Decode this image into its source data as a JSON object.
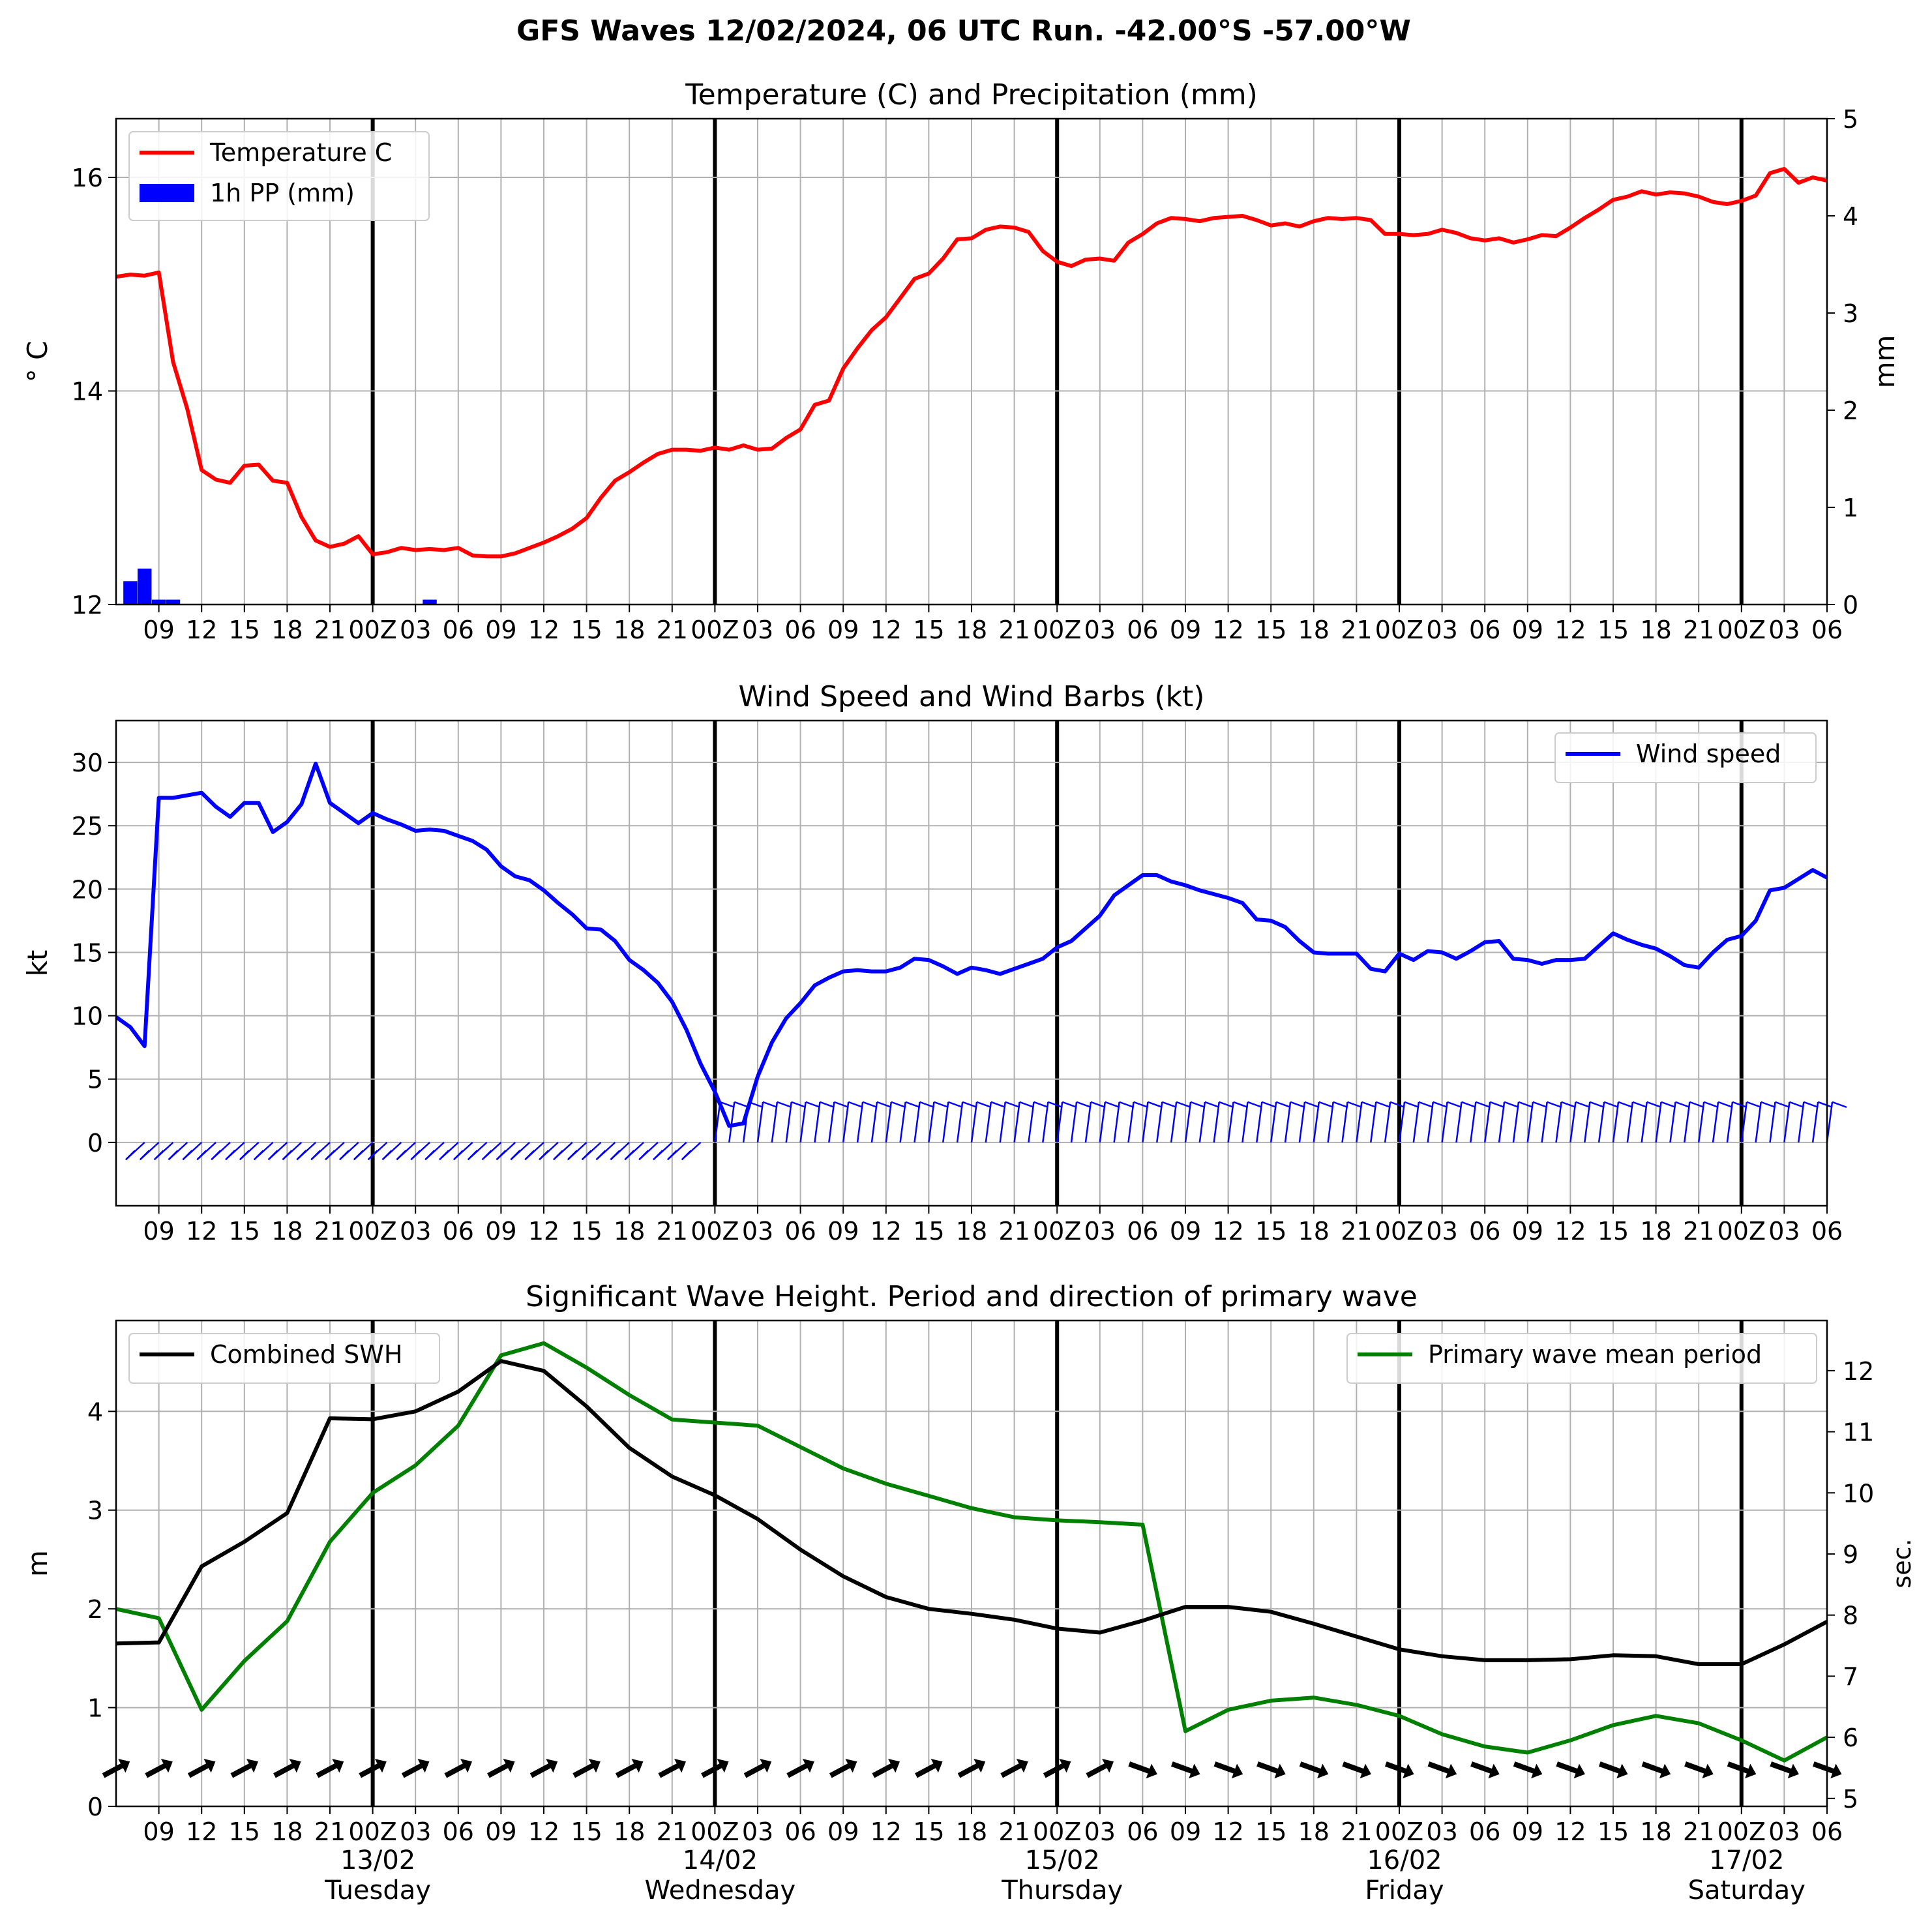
{
  "suptitle": "GFS Waves 12/02/2024, 06 UTC Run. -42.00°S -57.00°W",
  "colors": {
    "temperature": "#ff0000",
    "precip": "#0000ff",
    "wind": "#0000ff",
    "swh": "#000000",
    "period": "#008000",
    "grid": "#b0b0b0"
  },
  "x_axis": {
    "start_hour": 6,
    "end_hour": 126,
    "tick_labels": [
      "09",
      "12",
      "15",
      "18",
      "21",
      "00Z",
      "03",
      "06",
      "09",
      "12",
      "15",
      "18",
      "21",
      "00Z",
      "03",
      "06",
      "09",
      "12",
      "15",
      "18",
      "21",
      "00Z",
      "03",
      "06",
      "09",
      "12",
      "15",
      "18",
      "21",
      "00Z",
      "03",
      "06",
      "09",
      "12",
      "15",
      "18",
      "21",
      "00Z",
      "03",
      "06"
    ],
    "day_labels": [
      {
        "date": "13/02",
        "weekday": "Tuesday"
      },
      {
        "date": "14/02",
        "weekday": "Wednesday"
      },
      {
        "date": "15/02",
        "weekday": "Thursday"
      },
      {
        "date": "16/02",
        "weekday": "Friday"
      },
      {
        "date": "17/02",
        "weekday": "Saturday"
      }
    ]
  },
  "chart_data": [
    {
      "type": "line",
      "title": "Temperature (C) and Precipitation (mm)",
      "ylabel": "° C",
      "ylabel_right": "mm",
      "ylim": [
        12.0,
        16.55
      ],
      "yticks": [
        12,
        14,
        16
      ],
      "y2lim": [
        0,
        5
      ],
      "y2ticks": [
        0,
        1,
        2,
        3,
        4,
        5
      ],
      "legend": "upper-left",
      "series": [
        {
          "name": "Temperature C",
          "x": [
            6,
            7,
            8,
            9,
            10,
            11,
            12,
            13,
            14,
            15,
            16,
            17,
            18,
            19,
            20,
            21,
            22,
            23,
            24,
            25,
            26,
            27,
            28,
            29,
            30,
            31,
            32,
            33,
            34,
            35,
            36,
            37,
            38,
            39,
            40,
            41,
            42,
            43,
            44,
            45,
            46,
            47,
            48,
            49,
            50,
            51,
            52,
            53,
            54,
            55,
            56,
            57,
            58,
            59,
            60,
            61,
            62,
            63,
            64,
            65,
            66,
            67,
            68,
            69,
            70,
            71,
            72,
            73,
            74,
            75,
            76,
            77,
            78,
            79,
            80,
            81,
            82,
            83,
            84,
            85,
            86,
            87,
            88,
            89,
            90,
            91,
            92,
            93,
            94,
            95,
            96,
            97,
            98,
            99,
            100,
            101,
            102,
            103,
            104,
            105,
            106,
            107,
            108,
            109,
            110,
            111,
            112,
            113,
            114,
            115,
            116,
            117,
            118,
            119,
            120,
            121,
            122,
            123,
            124,
            125,
            126
          ],
          "y": [
            15.07,
            15.09,
            15.08,
            15.11,
            14.27,
            13.83,
            13.26,
            13.17,
            13.14,
            13.3,
            13.31,
            13.16,
            13.14,
            12.82,
            12.6,
            12.54,
            12.57,
            12.64,
            12.47,
            12.49,
            12.53,
            12.51,
            12.52,
            12.51,
            12.53,
            12.46,
            12.45,
            12.45,
            12.48,
            12.53,
            12.58,
            12.64,
            12.71,
            12.81,
            13.0,
            13.16,
            13.24,
            13.33,
            13.41,
            13.45,
            13.45,
            13.44,
            13.47,
            13.45,
            13.49,
            13.45,
            13.46,
            13.56,
            13.64,
            13.87,
            13.91,
            14.21,
            14.4,
            14.57,
            14.69,
            14.87,
            15.05,
            15.1,
            15.24,
            15.42,
            15.43,
            15.51,
            15.54,
            15.53,
            15.49,
            15.31,
            15.21,
            15.17,
            15.23,
            15.24,
            15.22,
            15.39,
            15.47,
            15.57,
            15.62,
            15.61,
            15.59,
            15.62,
            15.63,
            15.64,
            15.6,
            15.55,
            15.57,
            15.54,
            15.59,
            15.62,
            15.61,
            15.62,
            15.6,
            15.47,
            15.47,
            15.46,
            15.47,
            15.51,
            15.48,
            15.43,
            15.41,
            15.43,
            15.39,
            15.42,
            15.46,
            15.45,
            15.53,
            15.62,
            15.7,
            15.79,
            15.82,
            15.87,
            15.84,
            15.86,
            15.85,
            15.82,
            15.77,
            15.75,
            15.78,
            15.83,
            16.04,
            16.08,
            15.95,
            16.0,
            15.97
          ]
        },
        {
          "name": "1h PP (mm)",
          "type": "bar",
          "x": [
            7,
            8,
            9,
            10,
            28
          ],
          "y": [
            0.24,
            0.37,
            0.05,
            0.05,
            0.05
          ]
        }
      ]
    },
    {
      "type": "line",
      "title": "Wind Speed and Wind Barbs (kt)",
      "ylabel": "kt",
      "ylim": [
        -5,
        33.3
      ],
      "yticks": [
        0,
        5,
        10,
        15,
        20,
        25,
        30
      ],
      "legend": "upper-right",
      "series": [
        {
          "name": "Wind speed",
          "x": [
            6,
            7,
            8,
            9,
            10,
            11,
            12,
            13,
            14,
            15,
            16,
            17,
            18,
            19,
            20,
            21,
            22,
            23,
            24,
            25,
            26,
            27,
            28,
            29,
            30,
            31,
            32,
            33,
            34,
            35,
            36,
            37,
            38,
            39,
            40,
            41,
            42,
            43,
            44,
            45,
            46,
            47,
            48,
            49,
            50,
            51,
            52,
            53,
            54,
            55,
            56,
            57,
            58,
            59,
            60,
            61,
            62,
            63,
            64,
            65,
            66,
            67,
            68,
            69,
            70,
            71,
            72,
            73,
            74,
            75,
            76,
            77,
            78,
            79,
            80,
            81,
            82,
            83,
            84,
            85,
            86,
            87,
            88,
            89,
            90,
            91,
            92,
            93,
            94,
            95,
            96,
            97,
            98,
            99,
            100,
            101,
            102,
            103,
            104,
            105,
            106,
            107,
            108,
            109,
            110,
            111,
            112,
            113,
            114,
            115,
            116,
            117,
            118,
            119,
            120,
            121,
            122,
            123,
            124,
            125,
            126
          ],
          "y": [
            9.9,
            9.1,
            7.6,
            27.2,
            27.2,
            27.4,
            27.6,
            26.5,
            25.7,
            26.8,
            26.8,
            24.5,
            25.3,
            26.7,
            29.9,
            26.8,
            26.0,
            25.2,
            26.0,
            25.5,
            25.1,
            24.6,
            24.7,
            24.6,
            24.2,
            23.8,
            23.1,
            21.8,
            21.0,
            20.7,
            19.9,
            18.9,
            18.0,
            16.9,
            16.8,
            15.9,
            14.4,
            13.6,
            12.6,
            11.1,
            8.9,
            6.2,
            4.0,
            1.3,
            1.5,
            5.2,
            7.9,
            9.8,
            11.0,
            12.4,
            13.0,
            13.5,
            13.6,
            13.5,
            13.5,
            13.8,
            14.5,
            14.4,
            13.9,
            13.3,
            13.8,
            13.6,
            13.3,
            13.7,
            14.1,
            14.5,
            15.4,
            15.9,
            16.9,
            17.9,
            19.5,
            20.3,
            21.1,
            21.1,
            20.6,
            20.3,
            19.9,
            19.6,
            19.3,
            18.9,
            17.6,
            17.5,
            17.0,
            15.9,
            15.0,
            14.9,
            14.9,
            14.9,
            13.7,
            13.5,
            14.9,
            14.4,
            15.1,
            15.0,
            14.5,
            15.1,
            15.8,
            15.9,
            14.5,
            14.4,
            14.1,
            14.4,
            14.4,
            14.5,
            15.5,
            16.5,
            16.0,
            15.6,
            15.3,
            14.7,
            14.0,
            13.8,
            15.0,
            16.0,
            16.3,
            17.5,
            19.9,
            20.1,
            20.8,
            21.5,
            20.9
          ]
        }
      ]
    },
    {
      "type": "line",
      "title": "Significant Wave Height. Period and direction of primary wave",
      "ylabel": "m",
      "ylabel_right": "sec.",
      "ylim": [
        0,
        4.92
      ],
      "yticks": [
        0,
        1,
        2,
        3,
        4
      ],
      "y2lim": [
        4.87,
        12.82
      ],
      "y2ticks": [
        5,
        6,
        7,
        8,
        9,
        10,
        11,
        12
      ],
      "legend": [
        "upper-left",
        "upper-right"
      ],
      "series": [
        {
          "name": "Combined SWH",
          "x": [
            6,
            9,
            12,
            15,
            18,
            21,
            24,
            27,
            30,
            33,
            36,
            39,
            42,
            45,
            48,
            51,
            54,
            57,
            60,
            63,
            66,
            69,
            72,
            75,
            78,
            81,
            84,
            87,
            90,
            93,
            96,
            99,
            102,
            105,
            108,
            111,
            114,
            117,
            120,
            123,
            126
          ],
          "y": [
            1.65,
            1.66,
            2.43,
            2.68,
            2.97,
            3.93,
            3.92,
            4.0,
            4.2,
            4.51,
            4.41,
            4.05,
            3.63,
            3.34,
            3.15,
            2.91,
            2.6,
            2.33,
            2.12,
            2.0,
            1.95,
            1.89,
            1.8,
            1.76,
            1.88,
            2.02,
            2.02,
            1.97,
            1.85,
            1.72,
            1.59,
            1.52,
            1.48,
            1.48,
            1.49,
            1.53,
            1.52,
            1.44,
            1.44,
            1.64,
            1.87
          ],
          "axis": "left"
        },
        {
          "name": "Primary wave mean period",
          "x": [
            6,
            9,
            12,
            15,
            18,
            21,
            24,
            27,
            30,
            33,
            36,
            39,
            42,
            45,
            48,
            51,
            54,
            57,
            60,
            63,
            66,
            69,
            72,
            75,
            78,
            81,
            84,
            87,
            90,
            93,
            96,
            99,
            102,
            105,
            108,
            111,
            114,
            117,
            120,
            123,
            126
          ],
          "y": [
            8.1,
            7.95,
            6.45,
            7.25,
            7.9,
            9.2,
            10.0,
            10.45,
            11.1,
            12.25,
            12.45,
            12.05,
            11.6,
            11.2,
            11.15,
            11.1,
            10.75,
            10.4,
            10.15,
            9.95,
            9.75,
            9.6,
            9.55,
            9.52,
            9.48,
            6.1,
            6.45,
            6.6,
            6.65,
            6.53,
            6.35,
            6.05,
            5.85,
            5.75,
            5.95,
            6.2,
            6.35,
            6.23,
            5.95,
            5.62,
            6.0
          ],
          "axis": "right"
        }
      ]
    }
  ]
}
